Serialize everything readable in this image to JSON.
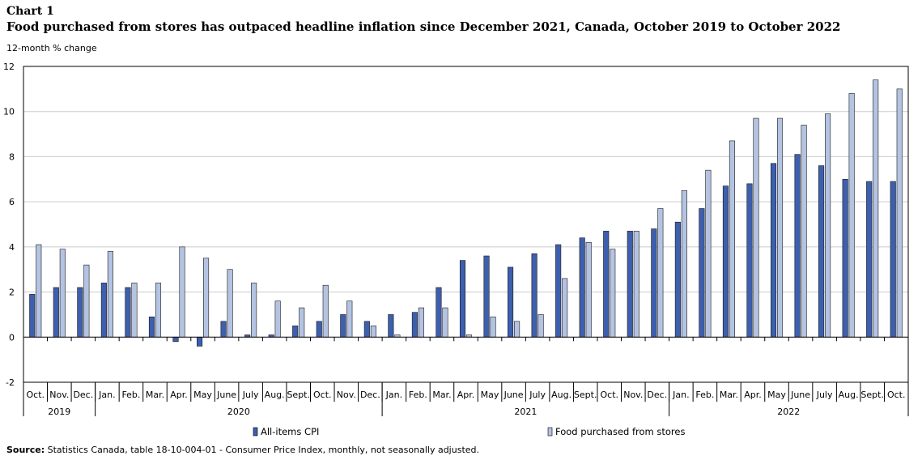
{
  "header": {
    "chart_label": "Chart 1",
    "title": "Food purchased from stores has outpaced headline inflation  since December 2021, Canada, October 2019 to October 2022",
    "y_unit": "12-month % change"
  },
  "footer": {
    "source_label": "Source:",
    "source_text": " Statistics Canada, table 18-10-004-01 - Consumer Price Index, monthly, not seasonally adjusted."
  },
  "colors": {
    "cpi": "#3d5fae",
    "food": "#b4c3e2",
    "grid": "#cccccc",
    "axis": "#000000"
  },
  "chart_data": {
    "type": "bar",
    "title": "Food purchased from stores has outpaced headline inflation  since December 2021, Canada, October 2019 to October 2022",
    "ylabel": "12-month % change",
    "xlabel": "",
    "ylim": [
      -2,
      12
    ],
    "yticks": [
      -2,
      0,
      2,
      4,
      6,
      8,
      10,
      12
    ],
    "grid": true,
    "legend_placement": "bottom-center",
    "categories": [
      "Oct.",
      "Nov.",
      "Dec.",
      "Jan.",
      "Feb.",
      "Mar.",
      "Apr.",
      "May",
      "June",
      "July",
      "Aug.",
      "Sept.",
      "Oct.",
      "Nov.",
      "Dec.",
      "Jan.",
      "Feb.",
      "Mar.",
      "Apr.",
      "May",
      "June",
      "July",
      "Aug.",
      "Sept.",
      "Oct.",
      "Nov.",
      "Dec.",
      "Jan.",
      "Feb.",
      "Mar.",
      "Apr.",
      "May",
      "June",
      "July",
      "Aug.",
      "Sept.",
      "Oct."
    ],
    "year_groups": [
      {
        "label": "2019",
        "start": 0,
        "end": 2
      },
      {
        "label": "2020",
        "start": 3,
        "end": 14
      },
      {
        "label": "2021",
        "start": 15,
        "end": 26
      },
      {
        "label": "2022",
        "start": 27,
        "end": 36
      }
    ],
    "series": [
      {
        "name": "All-items CPI",
        "values": [
          1.9,
          2.2,
          2.2,
          2.4,
          2.2,
          0.9,
          -0.2,
          -0.4,
          0.7,
          0.1,
          0.1,
          0.5,
          0.7,
          1.0,
          0.7,
          1.0,
          1.1,
          2.2,
          3.4,
          3.6,
          3.1,
          3.7,
          4.1,
          4.4,
          4.7,
          4.7,
          4.8,
          5.1,
          5.7,
          6.7,
          6.8,
          7.7,
          8.1,
          7.6,
          7.0,
          6.9,
          6.9
        ]
      },
      {
        "name": "Food purchased from stores",
        "values": [
          4.1,
          3.9,
          3.2,
          3.8,
          2.4,
          2.4,
          4.0,
          3.5,
          3.0,
          2.4,
          1.6,
          1.3,
          2.3,
          1.6,
          0.5,
          0.1,
          1.3,
          1.3,
          0.1,
          0.9,
          0.7,
          1.0,
          2.6,
          4.2,
          3.9,
          4.7,
          5.7,
          6.5,
          7.4,
          8.7,
          9.7,
          9.7,
          9.4,
          9.9,
          10.8,
          11.4,
          11.0
        ]
      }
    ]
  }
}
